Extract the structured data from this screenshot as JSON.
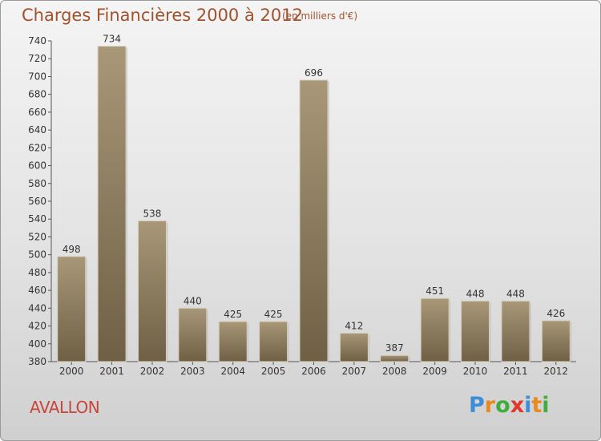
{
  "title": "Charges Financières 2000 à 2012",
  "subtitle": "(en milliers d'€)",
  "city": "AVALLON",
  "logo": {
    "letters": [
      {
        "ch": "P",
        "color": "#3d8ed8"
      },
      {
        "ch": "r",
        "color": "#e98a1c"
      },
      {
        "ch": "o",
        "color": "#3fae3b"
      },
      {
        "ch": "x",
        "color": "#e2372c"
      },
      {
        "ch": "i",
        "color": "#3d8ed8"
      },
      {
        "ch": "t",
        "color": "#e98a1c"
      },
      {
        "ch": "i",
        "color": "#3fae3b"
      }
    ]
  },
  "chart_data": {
    "type": "bar",
    "title": "Charges Financières 2000 à 2012",
    "subtitle": "(en milliers d'€)",
    "categories": [
      "2000",
      "2001",
      "2002",
      "2003",
      "2004",
      "2005",
      "2006",
      "2007",
      "2008",
      "2009",
      "2010",
      "2011",
      "2012"
    ],
    "values": [
      498,
      734,
      538,
      440,
      425,
      425,
      696,
      412,
      387,
      451,
      448,
      448,
      426
    ],
    "ylim": [
      380,
      740
    ],
    "yticks": [
      380,
      400,
      420,
      440,
      460,
      480,
      500,
      520,
      540,
      560,
      580,
      600,
      620,
      640,
      660,
      680,
      700,
      720,
      740
    ],
    "grid": false,
    "colors": {
      "bar_top": "#a89878",
      "bar_bottom": "#6f5f45",
      "title": "#a0522d",
      "city": "#c9453a"
    }
  }
}
